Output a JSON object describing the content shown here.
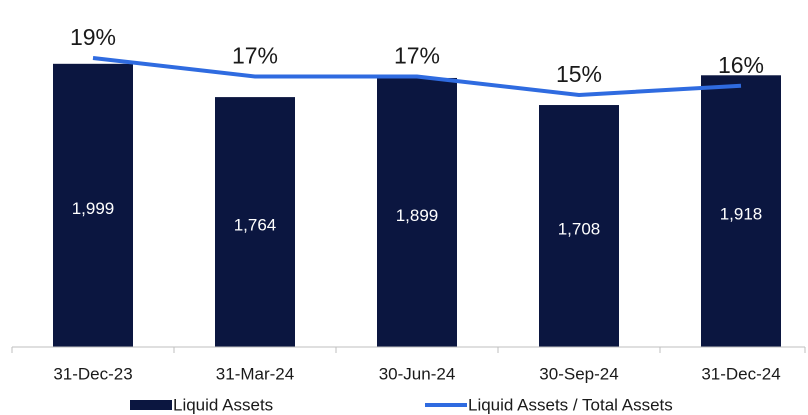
{
  "chart_data": {
    "type": "bar",
    "categories": [
      "31-Dec-23",
      "31-Mar-24",
      "30-Jun-24",
      "30-Sep-24",
      "31-Dec-24"
    ],
    "series": [
      {
        "name": "Liquid Assets",
        "type": "bar",
        "color": "#0b1640",
        "values": [
          1999,
          1764,
          1899,
          1708,
          1918
        ],
        "value_labels": [
          "1,999",
          "1,764",
          "1,899",
          "1,708",
          "1,918"
        ]
      },
      {
        "name": "Liquid Assets / Total Assets",
        "type": "line",
        "axis": "y2",
        "color": "#2f6be0",
        "values": [
          19,
          17,
          17,
          15,
          16
        ],
        "value_labels": [
          "19%",
          "17%",
          "17%",
          "15%",
          "16%"
        ]
      }
    ],
    "ylim": [
      0,
      2400
    ],
    "y2lim": [
      -12.2,
      24.5
    ],
    "legend": "bottom"
  }
}
